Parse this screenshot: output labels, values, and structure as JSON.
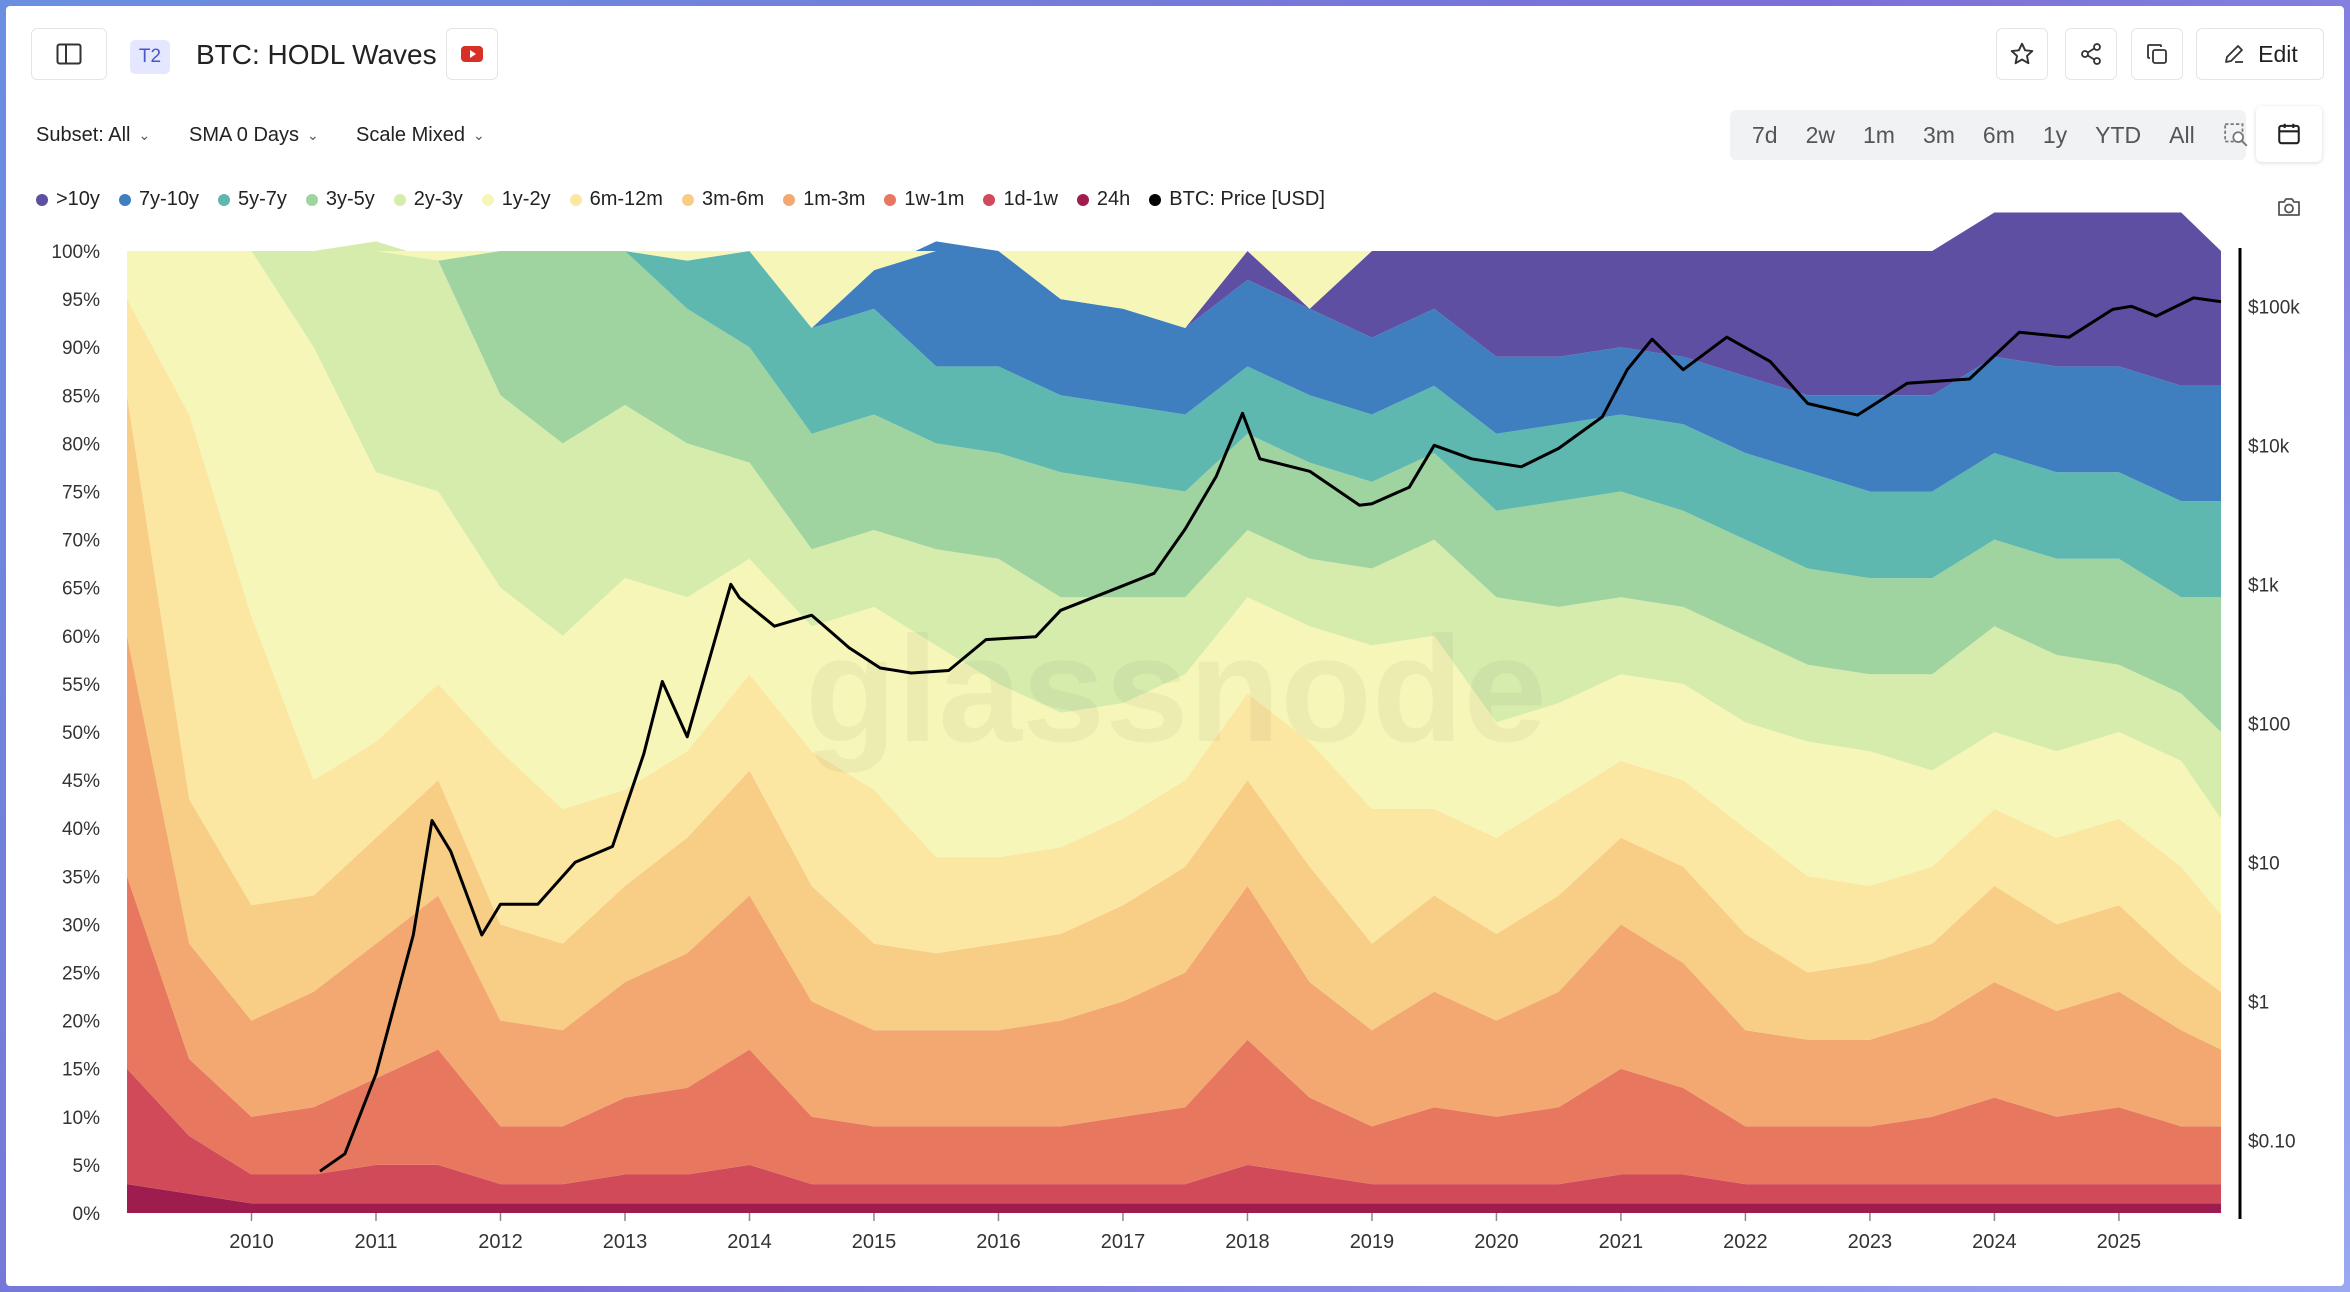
{
  "header": {
    "badge": "T2",
    "title": "BTC: HODL Waves",
    "edit_label": "Edit"
  },
  "icons": {
    "sidebar": "sidebar-toggle-icon",
    "youtube": "youtube-icon",
    "star": "star-icon",
    "share": "share-icon",
    "copy": "copy-icon",
    "edit": "pencil-icon",
    "calendar": "calendar-icon",
    "camera": "camera-icon",
    "zoom": "zoom-select-icon"
  },
  "controls": {
    "subset": "Subset: All",
    "sma": "SMA 0 Days",
    "scale": "Scale Mixed"
  },
  "timeframes": [
    "7d",
    "2w",
    "1m",
    "3m",
    "6m",
    "1y",
    "YTD",
    "All"
  ],
  "watermark": "glassnode",
  "legend": [
    {
      "label": ">10y",
      "color": "#5e4fa2"
    },
    {
      "label": "7y-10y",
      "color": "#3f7fc0"
    },
    {
      "label": "5y-7y",
      "color": "#5eb8b0"
    },
    {
      "label": "3y-5y",
      "color": "#9fd3a0"
    },
    {
      "label": "2y-3y",
      "color": "#d6ecad"
    },
    {
      "label": "1y-2y",
      "color": "#f6f6b8"
    },
    {
      "label": "6m-12m",
      "color": "#fbe7a2"
    },
    {
      "label": "3m-6m",
      "color": "#f8cd86"
    },
    {
      "label": "1m-3m",
      "color": "#f2a870"
    },
    {
      "label": "1w-1m",
      "color": "#e8775f"
    },
    {
      "label": "1d-1w",
      "color": "#d14a5a"
    },
    {
      "label": "24h",
      "color": "#9e1d4e"
    },
    {
      "label": "BTC: Price [USD]",
      "color": "#000000"
    }
  ],
  "chart_data": {
    "type": "area",
    "title": "BTC: HODL Waves",
    "stacked": true,
    "x_ticks": [
      "2010",
      "2011",
      "2012",
      "2013",
      "2014",
      "2015",
      "2016",
      "2017",
      "2018",
      "2019",
      "2020",
      "2021",
      "2022",
      "2023",
      "2024",
      "2025"
    ],
    "x": [
      2009.0,
      2009.5,
      2010.0,
      2010.5,
      2011.0,
      2011.5,
      2012.0,
      2012.5,
      2013.0,
      2013.5,
      2014.0,
      2014.5,
      2015.0,
      2015.5,
      2016.0,
      2016.5,
      2017.0,
      2017.5,
      2018.0,
      2018.5,
      2019.0,
      2019.5,
      2020.0,
      2020.5,
      2021.0,
      2021.5,
      2022.0,
      2022.5,
      2023.0,
      2023.5,
      2024.0,
      2024.5,
      2025.0,
      2025.5,
      2025.82
    ],
    "y_left": {
      "ylim": [
        0,
        100
      ],
      "ticks": [
        "0%",
        "5%",
        "10%",
        "15%",
        "20%",
        "25%",
        "30%",
        "35%",
        "40%",
        "45%",
        "50%",
        "55%",
        "60%",
        "65%",
        "70%",
        "75%",
        "80%",
        "85%",
        "90%",
        "95%",
        "100%"
      ]
    },
    "y_right": {
      "scale": "log",
      "ticks": [
        "$0.10",
        "$1",
        "$10",
        "$100",
        "$1k",
        "$10k",
        "$100k"
      ]
    },
    "series": [
      {
        "name": "24h",
        "color": "#9e1d4e",
        "values": [
          3,
          2,
          1,
          1,
          1,
          1,
          1,
          1,
          1,
          1,
          1,
          1,
          1,
          1,
          1,
          1,
          1,
          1,
          1,
          1,
          1,
          1,
          1,
          1,
          1,
          1,
          1,
          1,
          1,
          1,
          1,
          1,
          1,
          1,
          1
        ]
      },
      {
        "name": "1d-1w",
        "color": "#d14a5a",
        "values": [
          12,
          6,
          3,
          3,
          4,
          4,
          2,
          2,
          3,
          3,
          4,
          2,
          2,
          2,
          2,
          2,
          2,
          2,
          4,
          3,
          2,
          2,
          2,
          2,
          3,
          3,
          2,
          2,
          2,
          2,
          2,
          2,
          2,
          2,
          2
        ]
      },
      {
        "name": "1w-1m",
        "color": "#e8775f",
        "values": [
          20,
          8,
          6,
          7,
          9,
          12,
          6,
          6,
          8,
          9,
          12,
          7,
          6,
          6,
          6,
          6,
          7,
          8,
          13,
          8,
          6,
          8,
          7,
          8,
          11,
          9,
          6,
          6,
          6,
          7,
          9,
          7,
          8,
          6,
          6
        ]
      },
      {
        "name": "1m-3m",
        "color": "#f2a870",
        "values": [
          25,
          12,
          10,
          12,
          14,
          16,
          11,
          10,
          12,
          14,
          16,
          12,
          10,
          10,
          10,
          11,
          12,
          14,
          16,
          12,
          10,
          12,
          10,
          12,
          15,
          13,
          10,
          9,
          9,
          10,
          12,
          11,
          12,
          10,
          8
        ]
      },
      {
        "name": "3m-6m",
        "color": "#f8cd86",
        "values": [
          25,
          15,
          12,
          10,
          11,
          12,
          10,
          9,
          10,
          12,
          13,
          12,
          9,
          8,
          9,
          9,
          10,
          11,
          11,
          12,
          9,
          10,
          9,
          10,
          9,
          10,
          10,
          7,
          8,
          8,
          10,
          9,
          9,
          7,
          6
        ]
      },
      {
        "name": "6m-12m",
        "color": "#fbe7a2",
        "values": [
          10,
          40,
          30,
          12,
          10,
          10,
          18,
          14,
          10,
          9,
          10,
          14,
          16,
          10,
          9,
          9,
          9,
          9,
          9,
          13,
          14,
          9,
          10,
          10,
          8,
          9,
          11,
          10,
          8,
          8,
          8,
          9,
          9,
          10,
          8
        ]
      },
      {
        "name": "1y-2y",
        "color": "#f6f6b8",
        "values": [
          5,
          17,
          38,
          45,
          28,
          20,
          17,
          18,
          22,
          16,
          12,
          13,
          19,
          22,
          18,
          14,
          12,
          11,
          10,
          12,
          17,
          18,
          12,
          10,
          9,
          10,
          11,
          14,
          14,
          10,
          8,
          9,
          9,
          11,
          10
        ]
      },
      {
        "name": "2y-3y",
        "color": "#d6ecad",
        "values": [
          0,
          0,
          0,
          10,
          24,
          24,
          20,
          20,
          18,
          16,
          10,
          8,
          8,
          10,
          13,
          12,
          11,
          8,
          7,
          7,
          8,
          10,
          13,
          10,
          8,
          8,
          9,
          8,
          8,
          10,
          11,
          10,
          7,
          7,
          9
        ]
      },
      {
        "name": "3y-5y",
        "color": "#9fd3a0",
        "values": [
          0,
          0,
          0,
          0,
          0,
          0,
          15,
          20,
          16,
          14,
          12,
          12,
          12,
          11,
          11,
          13,
          12,
          11,
          10,
          10,
          9,
          9,
          9,
          11,
          11,
          10,
          10,
          10,
          10,
          10,
          9,
          10,
          11,
          10,
          14
        ]
      },
      {
        "name": "5y-7y",
        "color": "#5eb8b0",
        "values": [
          0,
          0,
          0,
          0,
          0,
          0,
          0,
          0,
          0,
          5,
          10,
          11,
          11,
          8,
          9,
          8,
          8,
          8,
          7,
          7,
          7,
          7,
          8,
          8,
          8,
          9,
          9,
          10,
          9,
          9,
          9,
          9,
          9,
          10,
          10
        ]
      },
      {
        "name": "7y-10y",
        "color": "#3f7fc0",
        "values": [
          0,
          0,
          0,
          0,
          0,
          0,
          0,
          0,
          0,
          0,
          0,
          0,
          4,
          13,
          12,
          10,
          10,
          9,
          9,
          9,
          8,
          8,
          8,
          7,
          7,
          7,
          8,
          8,
          10,
          10,
          10,
          11,
          11,
          12,
          12
        ]
      },
      {
        "name": ">10y",
        "color": "#5e4fa2",
        "values": [
          0,
          0,
          0,
          0,
          0,
          0,
          0,
          0,
          0,
          0,
          0,
          0,
          0,
          0,
          0,
          0,
          0,
          0,
          3,
          0,
          9,
          6,
          11,
          11,
          10,
          11,
          13,
          15,
          15,
          15,
          15,
          16,
          16,
          18,
          14
        ]
      }
    ],
    "price": {
      "name": "BTC: Price [USD]",
      "color": "#000000",
      "scale": "log",
      "x": [
        2010.55,
        2010.75,
        2011.0,
        2011.3,
        2011.45,
        2011.6,
        2011.85,
        2012.0,
        2012.3,
        2012.6,
        2012.9,
        2013.15,
        2013.3,
        2013.5,
        2013.85,
        2013.92,
        2014.2,
        2014.5,
        2014.8,
        2015.05,
        2015.3,
        2015.6,
        2015.9,
        2016.3,
        2016.5,
        2016.9,
        2017.25,
        2017.5,
        2017.75,
        2017.96,
        2018.1,
        2018.5,
        2018.9,
        2019.0,
        2019.3,
        2019.5,
        2019.8,
        2020.2,
        2020.5,
        2020.85,
        2021.05,
        2021.25,
        2021.5,
        2021.85,
        2022.2,
        2022.5,
        2022.9,
        2023.3,
        2023.8,
        2024.2,
        2024.6,
        2024.95,
        2025.1,
        2025.3,
        2025.6,
        2025.82
      ],
      "values": [
        0.06,
        0.08,
        0.3,
        3,
        20,
        12,
        3,
        5,
        5,
        10,
        13,
        60,
        200,
        80,
        1000,
        800,
        500,
        600,
        350,
        250,
        230,
        240,
        400,
        420,
        650,
        900,
        1200,
        2500,
        6000,
        17000,
        8000,
        6500,
        3700,
        3800,
        5000,
        10000,
        8000,
        7000,
        9500,
        16000,
        35000,
        58000,
        35000,
        60000,
        40000,
        20000,
        16500,
        28000,
        30000,
        65000,
        60000,
        95000,
        100000,
        85000,
        115000,
        108000
      ]
    }
  }
}
